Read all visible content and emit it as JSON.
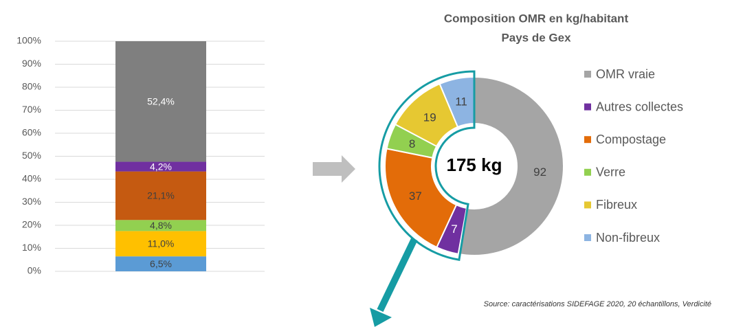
{
  "chart_data": [
    {
      "type": "stacked_bar",
      "categories": [
        null
      ],
      "ylim": [
        0,
        100
      ],
      "yticks": [
        {
          "value": 0,
          "label": "0%"
        },
        {
          "value": 10,
          "label": "10%"
        },
        {
          "value": 20,
          "label": "20%"
        },
        {
          "value": 30,
          "label": "30%"
        },
        {
          "value": 40,
          "label": "40%"
        },
        {
          "value": 50,
          "label": "50%"
        },
        {
          "value": 60,
          "label": "60%"
        },
        {
          "value": 70,
          "label": "70%"
        },
        {
          "value": 80,
          "label": "80%"
        },
        {
          "value": 90,
          "label": "90%"
        },
        {
          "value": 100,
          "label": "100%"
        }
      ],
      "grid": true,
      "series": [
        {
          "color": "#5b9bd5",
          "values": [
            6.5
          ],
          "value_labels": [
            "6,5%"
          ]
        },
        {
          "color": "#ffc000",
          "values": [
            11.0
          ],
          "value_labels": [
            "11,0%"
          ]
        },
        {
          "color": "#92d050",
          "values": [
            4.8
          ],
          "value_labels": [
            "4,8%"
          ]
        },
        {
          "color": "#c55a11",
          "values": [
            21.1
          ],
          "value_labels": [
            "21,1%"
          ]
        },
        {
          "color": "#7030a0",
          "values": [
            4.2
          ],
          "value_labels": [
            "4,2%"
          ]
        },
        {
          "color": "#7f7f7f",
          "values": [
            52.4
          ],
          "value_labels": [
            "52,4%"
          ]
        }
      ]
    },
    {
      "type": "donut",
      "title": "Composition OMR en kg/habitant",
      "subtitle": "Pays de Gex",
      "center_label": "175 kg",
      "legend": "right",
      "categories": [
        "OMR vraie",
        "Autres collectes",
        "Compostage",
        "Verre",
        "Fibreux",
        "Non-fibreux"
      ],
      "values": [
        92,
        7,
        37,
        8,
        19,
        11
      ],
      "colors": [
        "#a5a5a5",
        "#7030a0",
        "#e36c09",
        "#92d050",
        "#e6c832",
        "#8db4e2"
      ],
      "source": "Source: caractérisations SIDEFAGE 2020, 20 échantillons, Verdicité"
    }
  ]
}
